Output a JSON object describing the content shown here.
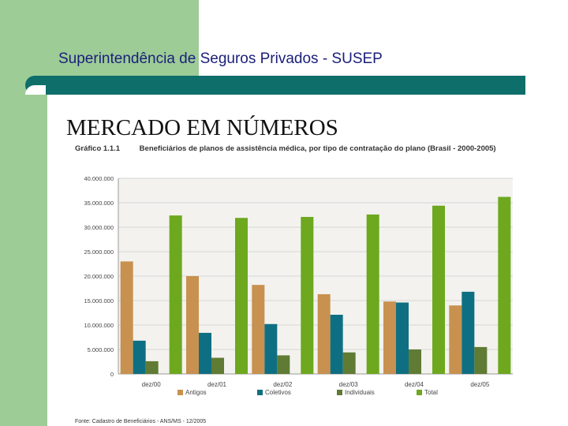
{
  "header": {
    "title": "Superintendência de Seguros Privados - SUSEP"
  },
  "slide": {
    "title": "MERCADO EM NÚMEROS"
  },
  "chart_caption": {
    "number": "Gráfico 1.1.1",
    "text": "Beneficiários de planos de assistência médica, por tipo de contratação do plano (Brasil - 2000-2005)"
  },
  "source": "Fonte: Cadastro de Beneficiários - ANS/MS - 12/2005",
  "colors": {
    "green_bg": "#9dcc97",
    "teal_bar": "#0d6e6a",
    "title_blue": "#1a1f7a"
  },
  "chart_data": {
    "type": "bar",
    "categories": [
      "dez/00",
      "dez/01",
      "dez/02",
      "dez/03",
      "dez/04",
      "dez/05"
    ],
    "series": [
      {
        "name": "Antigos",
        "color": "#c8914f",
        "values": [
          23000000,
          20000000,
          18200000,
          16300000,
          14800000,
          14000000
        ]
      },
      {
        "name": "Coletivos",
        "color": "#0f6f82",
        "values": [
          6800000,
          8400000,
          10200000,
          12100000,
          14600000,
          16800000
        ]
      },
      {
        "name": "Individuais",
        "color": "#5f7b34",
        "values": [
          2600000,
          3300000,
          3800000,
          4400000,
          5000000,
          5500000
        ]
      },
      {
        "name": "Total",
        "color": "#6da81f",
        "values": [
          32400000,
          31900000,
          32100000,
          32600000,
          34400000,
          36200000
        ]
      }
    ],
    "yticks": [
      "0",
      "5.000.000",
      "10.000.000",
      "15.000.000",
      "20.000.000",
      "25.000.000",
      "30.000.000",
      "35.000.000",
      "40.000.000"
    ],
    "ylim": [
      0,
      40000000
    ],
    "grid": true,
    "legend": "bottom"
  }
}
